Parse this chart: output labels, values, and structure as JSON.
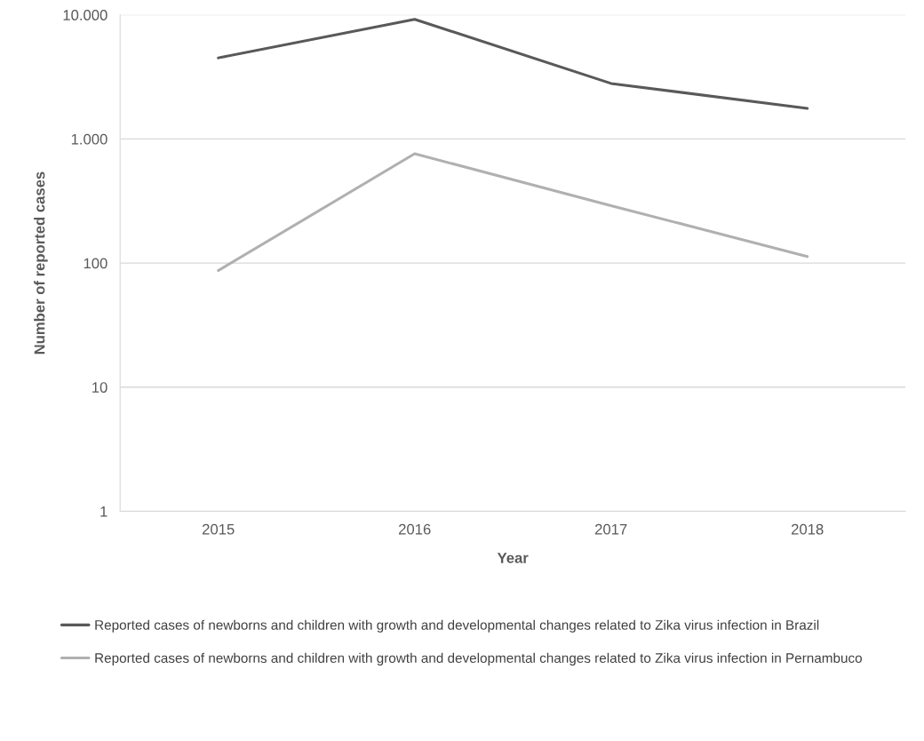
{
  "chart_data": {
    "type": "line",
    "categories": [
      "2015",
      "2016",
      "2017",
      "2018"
    ],
    "series": [
      {
        "name": "Reported cases of newborns and children with growth and developmental changes related to Zika virus infection in Brazil",
        "color": "#595959",
        "values": [
          4500,
          9200,
          2800,
          1760
        ]
      },
      {
        "name": "Reported cases of newborns and children with growth and developmental changes related to Zika virus infection in Pernambuco",
        "color": "#b0b0b0",
        "values": [
          87,
          760,
          290,
          113
        ]
      }
    ],
    "xlabel": "Year",
    "ylabel": "Number of reported cases",
    "log": "y",
    "ylim": [
      1,
      10000
    ],
    "yticks": [
      1,
      10,
      100,
      {
        "value": 1000,
        "label": "1.000"
      },
      {
        "value": 10000,
        "label": "10.000"
      }
    ],
    "grid": "y",
    "legend": "bottom",
    "marker": "none",
    "line_style": "solid"
  }
}
